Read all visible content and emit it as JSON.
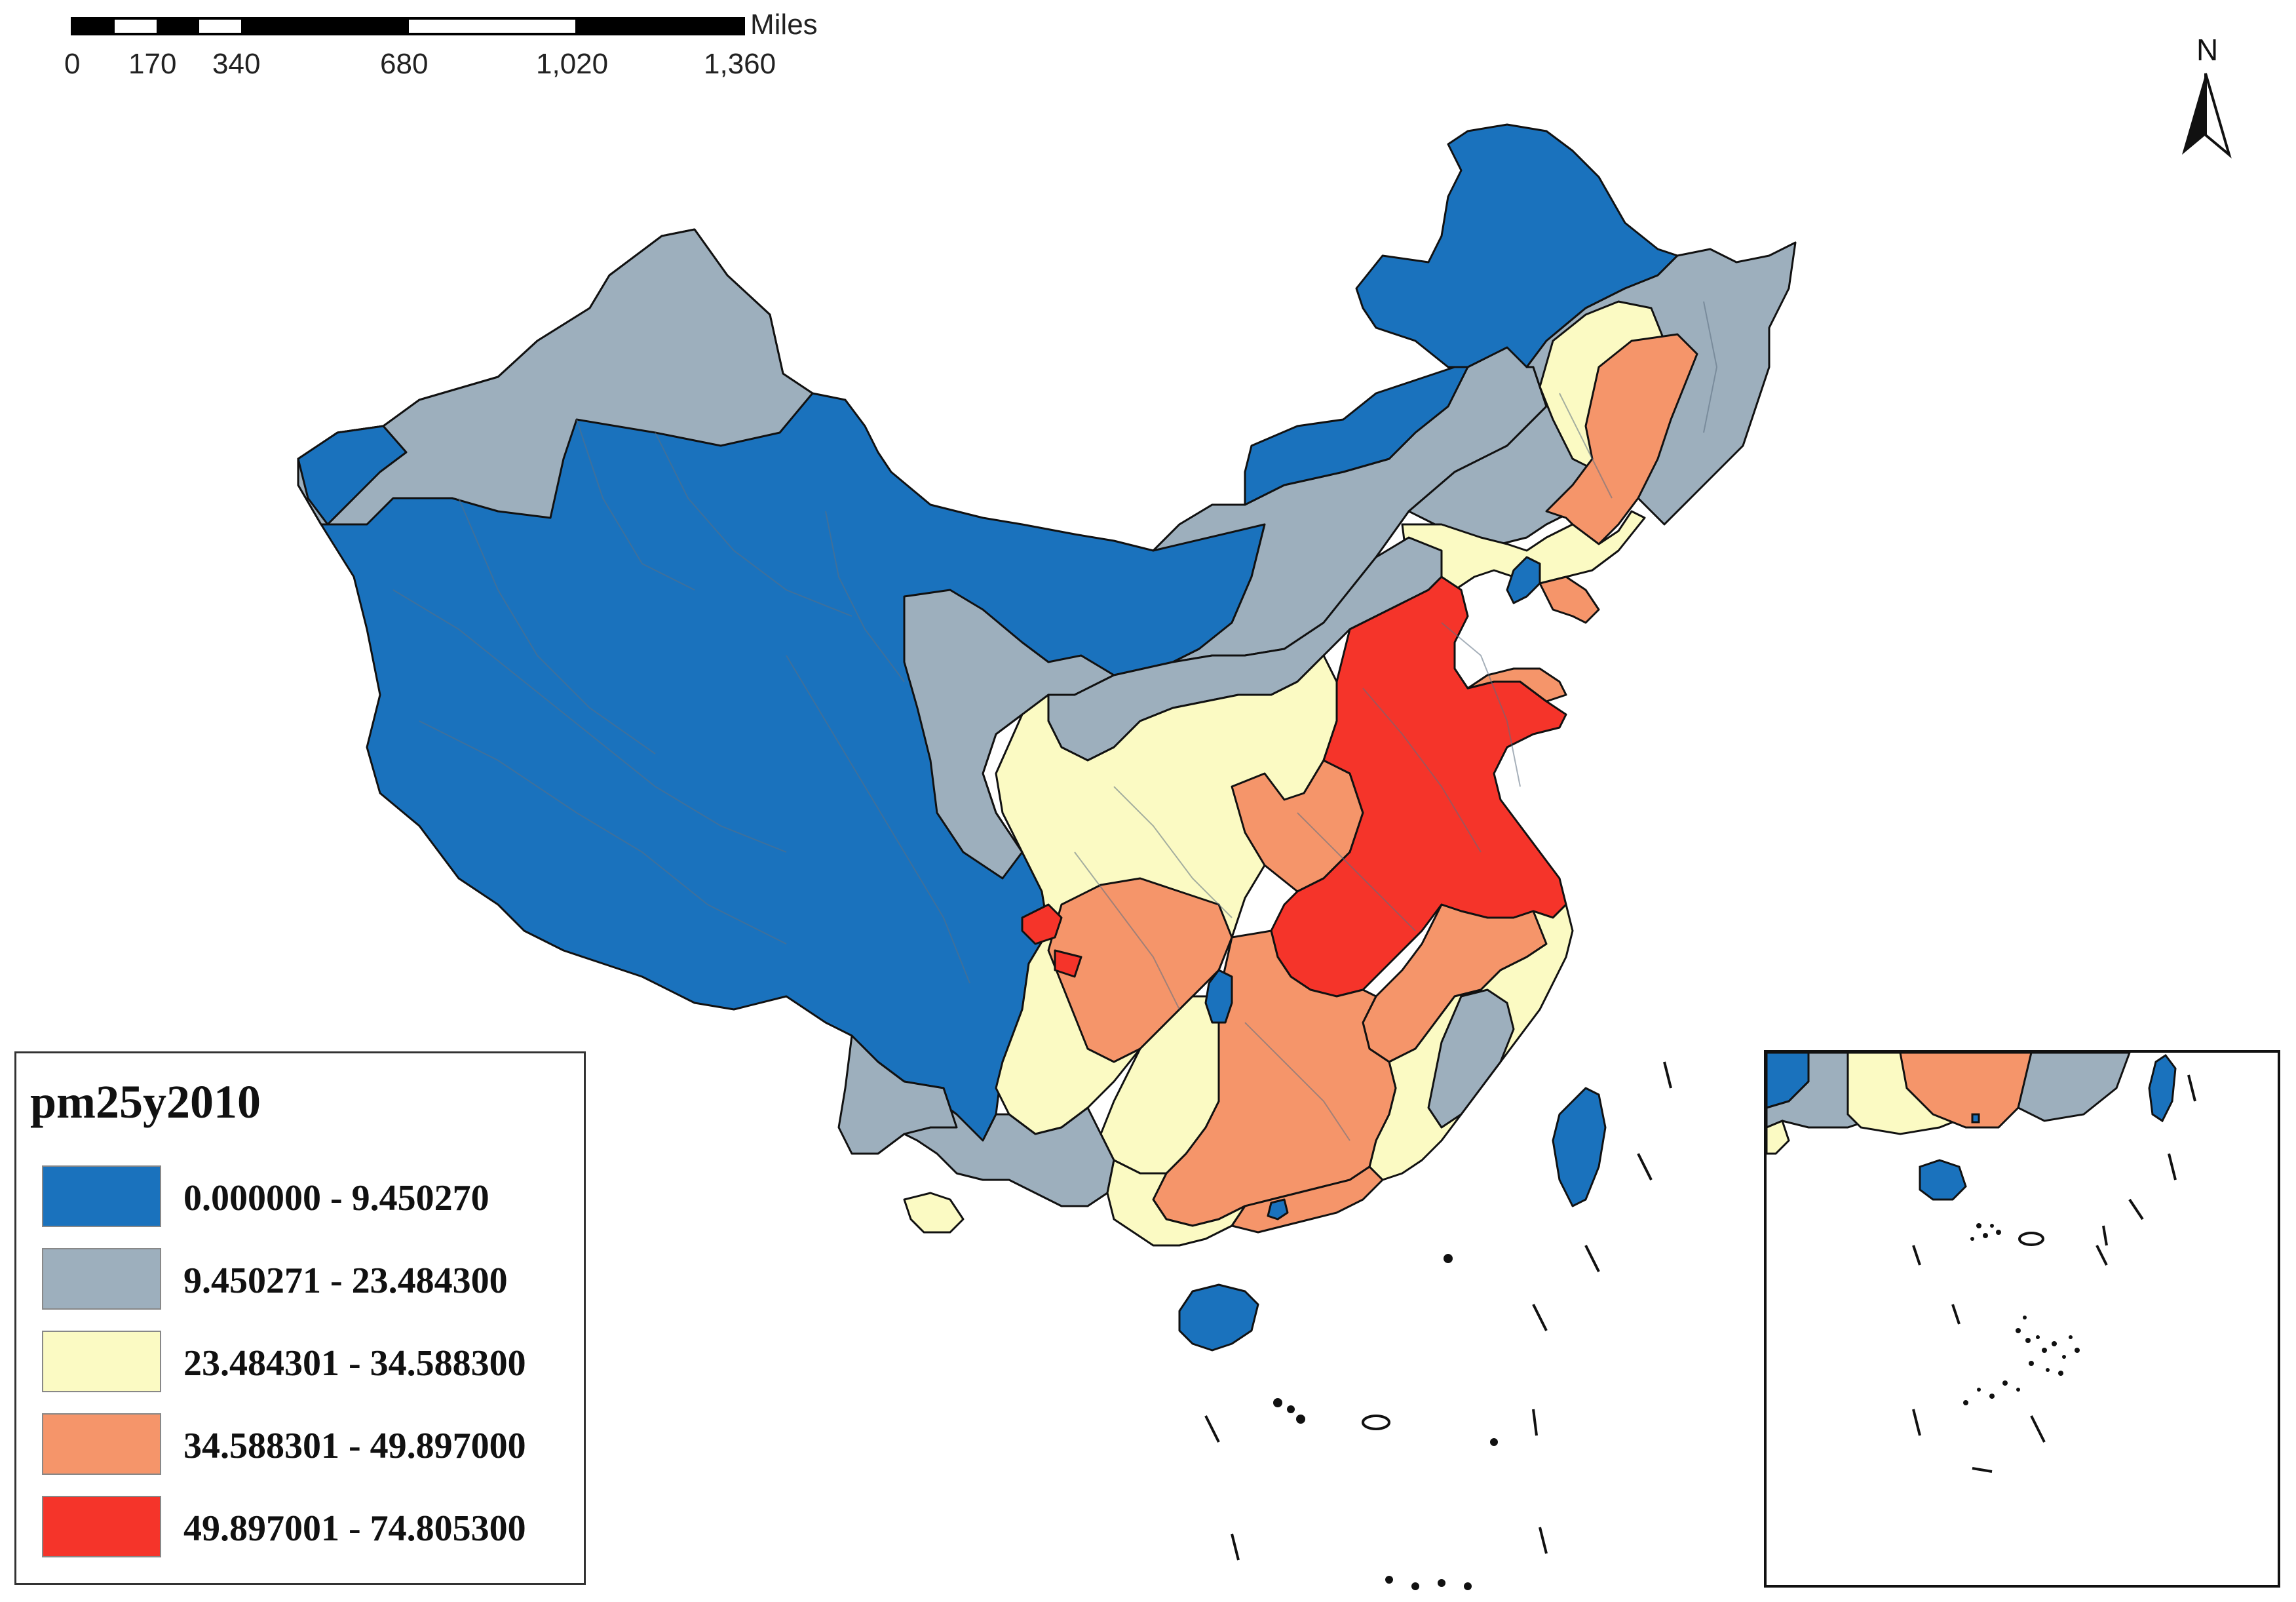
{
  "scale_bar": {
    "unit": "Miles",
    "ticks": [
      "0",
      "170",
      "340",
      "680",
      "1,020",
      "1,360"
    ]
  },
  "north_arrow": {
    "label": "N"
  },
  "legend": {
    "title": "pm25y2010",
    "classes": [
      {
        "label": "0.000000 - 9.450270",
        "color": "#1a72bd"
      },
      {
        "label": "9.450271 - 23.484300",
        "color": "#9dafbd"
      },
      {
        "label": "23.484301 - 34.588300",
        "color": "#fbfac3"
      },
      {
        "label": "34.588301 - 49.897000",
        "color": "#f5956a"
      },
      {
        "label": "49.897001 - 74.805300",
        "color": "#f5342a"
      }
    ]
  },
  "colors": {
    "low": "#1a72bd",
    "low_mid": "#9dafbd",
    "mid": "#fbfac3",
    "high_mid": "#f5956a",
    "high": "#f5342a",
    "boundary": "#5d6f82",
    "outline": "#111111"
  }
}
